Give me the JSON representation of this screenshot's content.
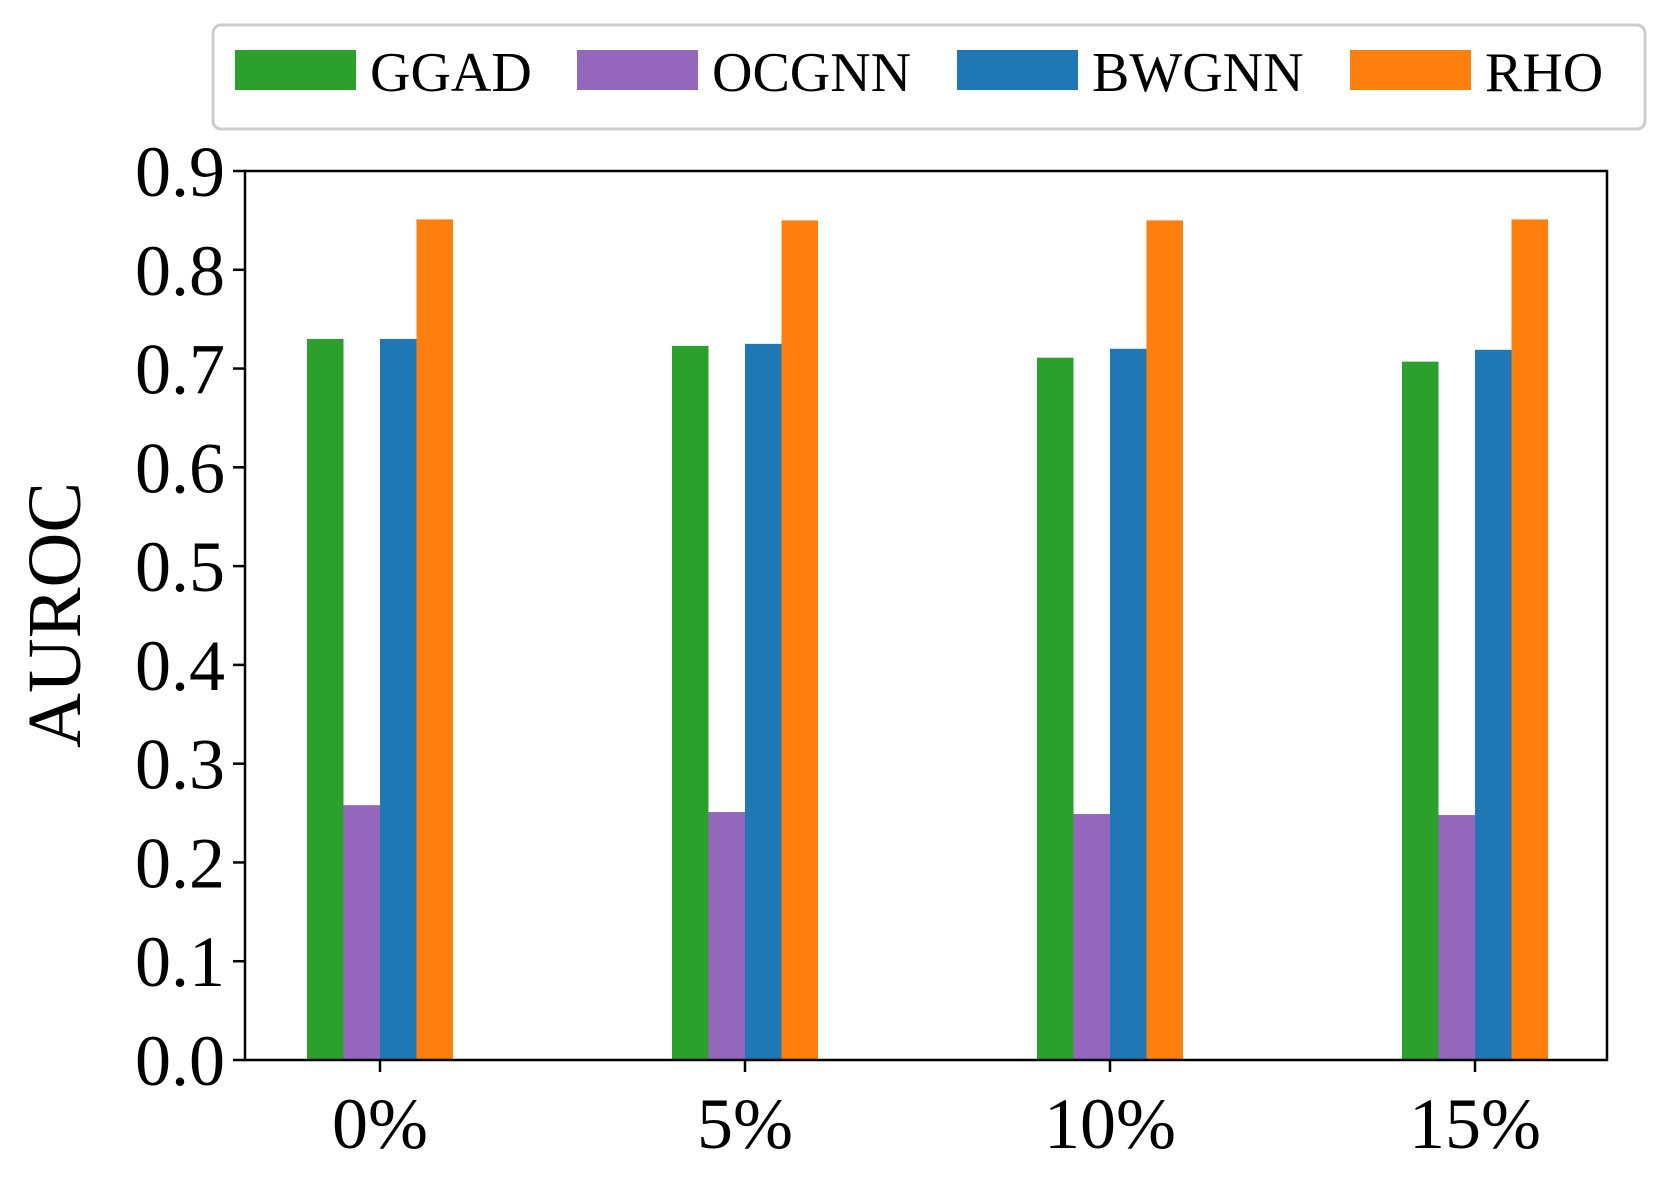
{
  "chart_data": {
    "type": "bar",
    "title": "",
    "xlabel": "",
    "ylabel": "AUROC",
    "ylim": [
      0.0,
      0.9
    ],
    "yticks": [
      "0.0",
      "0.1",
      "0.2",
      "0.3",
      "0.4",
      "0.5",
      "0.6",
      "0.7",
      "0.8",
      "0.9"
    ],
    "categories": [
      "0%",
      "5%",
      "10%",
      "15%"
    ],
    "grid": false,
    "legend_position": "top",
    "series": [
      {
        "name": "GGAD",
        "color": "#2ca02c",
        "values": [
          0.73,
          0.723,
          0.711,
          0.707
        ]
      },
      {
        "name": "OCGNN",
        "color": "#9467bd",
        "values": [
          0.258,
          0.251,
          0.249,
          0.248
        ]
      },
      {
        "name": "BWGNN",
        "color": "#1f77b4",
        "values": [
          0.73,
          0.725,
          0.72,
          0.719
        ]
      },
      {
        "name": "RHO",
        "color": "#ff7f0e",
        "values": [
          0.851,
          0.85,
          0.85,
          0.851
        ]
      }
    ]
  }
}
